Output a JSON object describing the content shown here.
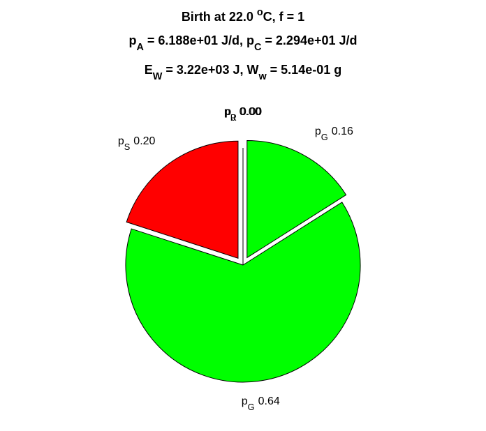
{
  "chart_data": {
    "type": "pie",
    "title": [
      [
        {
          "text": "Birth at 22.0 "
        },
        {
          "text": "o",
          "shift": "super"
        },
        {
          "text": "C, f = 1"
        }
      ],
      [
        {
          "text": "p"
        },
        {
          "text": "A",
          "shift": "sub"
        },
        {
          "text": " = 6.188e+01 J/d, p"
        },
        {
          "text": "C",
          "shift": "sub"
        },
        {
          "text": " = 2.294e+01 J/d"
        }
      ],
      [
        {
          "text": "E"
        },
        {
          "text": "W",
          "shift": "sub"
        },
        {
          "text": " = 3.22e+03 J, W"
        },
        {
          "text": "w",
          "shift": "sub"
        },
        {
          "text": " = 5.14e-01 g"
        }
      ]
    ],
    "categories": [
      [
        {
          "text": "p"
        },
        {
          "text": "S",
          "shift": "sub"
        }
      ],
      [
        {
          "text": "p"
        },
        {
          "text": "G",
          "shift": "sub"
        }
      ],
      [
        {
          "text": "p"
        },
        {
          "text": "G",
          "shift": "sub"
        }
      ],
      [
        {
          "text": "p"
        },
        {
          "text": "J",
          "shift": "sub"
        }
      ],
      [
        {
          "text": "p"
        },
        {
          "text": "R",
          "shift": "sub"
        }
      ]
    ],
    "values": [
      0.2,
      0.64,
      0.16,
      0,
      0
    ],
    "value_labels": [
      "0.20",
      "0.64",
      "0.16",
      "0.00",
      "0.00"
    ],
    "colors": [
      "#ff0000",
      "#00ff00",
      "#00ff00",
      "#00ff00",
      "#ff0000"
    ],
    "explode": [
      true,
      false,
      true,
      false,
      false
    ]
  }
}
